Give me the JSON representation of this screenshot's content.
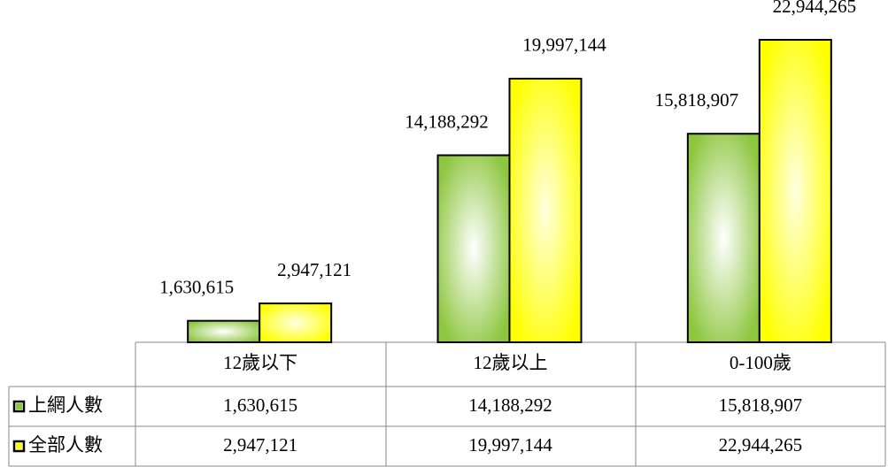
{
  "chart_data": {
    "type": "bar",
    "categories": [
      "12歲以下",
      "12歲以上",
      "0-100歲"
    ],
    "series": [
      {
        "name": "上網人數",
        "color": "#8dc63f",
        "values": [
          1630615,
          14188292,
          15818907
        ],
        "value_labels": [
          "1,630,615",
          "14,188,292",
          "15,818,907"
        ]
      },
      {
        "name": "全部人數",
        "color": "#ffff00",
        "values": [
          2947121,
          19997144,
          22944265
        ],
        "value_labels": [
          "2,947,121",
          "19,997,144",
          "22,944,265"
        ]
      }
    ]
  }
}
